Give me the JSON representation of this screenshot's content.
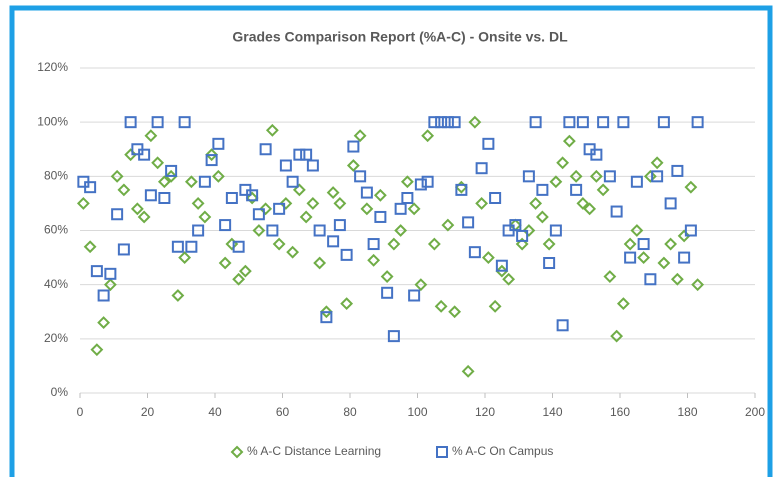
{
  "chart_data": {
    "type": "scatter",
    "title": "Grades Comparison Report (%A-C) - Onsite vs. DL",
    "x": [
      1,
      3,
      5,
      7,
      9,
      11,
      13,
      15,
      17,
      19,
      21,
      23,
      25,
      27,
      29,
      31,
      33,
      35,
      37,
      39,
      41,
      43,
      45,
      47,
      49,
      51,
      53,
      55,
      57,
      59,
      61,
      63,
      65,
      67,
      69,
      71,
      73,
      75,
      77,
      79,
      81,
      83,
      85,
      87,
      89,
      91,
      93,
      95,
      97,
      99,
      101,
      103,
      105,
      107,
      109,
      111,
      113,
      115,
      117,
      119,
      121,
      123,
      125,
      127,
      129,
      131,
      133,
      135,
      137,
      139,
      141,
      143,
      145,
      147,
      149,
      151,
      153,
      155,
      157,
      159,
      161,
      163,
      165,
      167,
      169,
      171,
      173,
      175,
      177,
      179,
      181,
      183
    ],
    "series": [
      {
        "name": "% A-C Distance Learning",
        "color": "#70ad47",
        "marker": "diamond",
        "values": [
          70,
          54,
          16,
          26,
          40,
          80,
          75,
          88,
          68,
          65,
          95,
          85,
          78,
          80,
          36,
          50,
          78,
          70,
          65,
          88,
          80,
          48,
          55,
          42,
          45,
          72,
          60,
          68,
          97,
          55,
          70,
          52,
          75,
          65,
          70,
          48,
          30,
          74,
          70,
          33,
          84,
          95,
          68,
          49,
          73,
          43,
          55,
          60,
          78,
          68,
          40,
          95,
          55,
          32,
          62,
          30,
          76,
          8,
          100,
          70,
          50,
          32,
          45,
          42,
          62,
          55,
          60,
          70,
          65,
          55,
          78,
          85,
          93,
          80,
          70,
          68,
          80,
          75,
          43,
          21,
          33,
          55,
          60,
          50,
          80,
          85,
          48,
          55,
          42,
          58,
          76,
          40
        ]
      },
      {
        "name": "% A-C On Campus",
        "color": "#4472c4",
        "marker": "square",
        "values": [
          78,
          76,
          45,
          36,
          44,
          66,
          53,
          100,
          90,
          88,
          73,
          100,
          72,
          82,
          54,
          100,
          54,
          60,
          78,
          86,
          92,
          62,
          72,
          54,
          75,
          73,
          66,
          90,
          60,
          68,
          84,
          78,
          88,
          88,
          84,
          60,
          28,
          56,
          62,
          51,
          91,
          80,
          74,
          55,
          65,
          37,
          21,
          68,
          72,
          36,
          77,
          78,
          100,
          100,
          100,
          100,
          75,
          63,
          52,
          83,
          92,
          72,
          47,
          60,
          62,
          58,
          80,
          100,
          75,
          48,
          60,
          25,
          100,
          75,
          100,
          90,
          88,
          100,
          80,
          67,
          100,
          50,
          78,
          55,
          42,
          80,
          100,
          70,
          82,
          50,
          60,
          100
        ]
      }
    ],
    "xlim": [
      0,
      200
    ],
    "xticks": [
      0,
      20,
      40,
      60,
      80,
      100,
      120,
      140,
      160,
      180,
      200
    ],
    "ylim": [
      0,
      120
    ],
    "yticks": [
      {
        "value": 0,
        "label": "0%"
      },
      {
        "value": 20,
        "label": "20%"
      },
      {
        "value": 40,
        "label": "40%"
      },
      {
        "value": 60,
        "label": "60%"
      },
      {
        "value": 80,
        "label": "80%"
      },
      {
        "value": 100,
        "label": "100%"
      },
      {
        "value": 120,
        "label": "120%"
      }
    ],
    "grid": true,
    "legend": "bottom"
  }
}
